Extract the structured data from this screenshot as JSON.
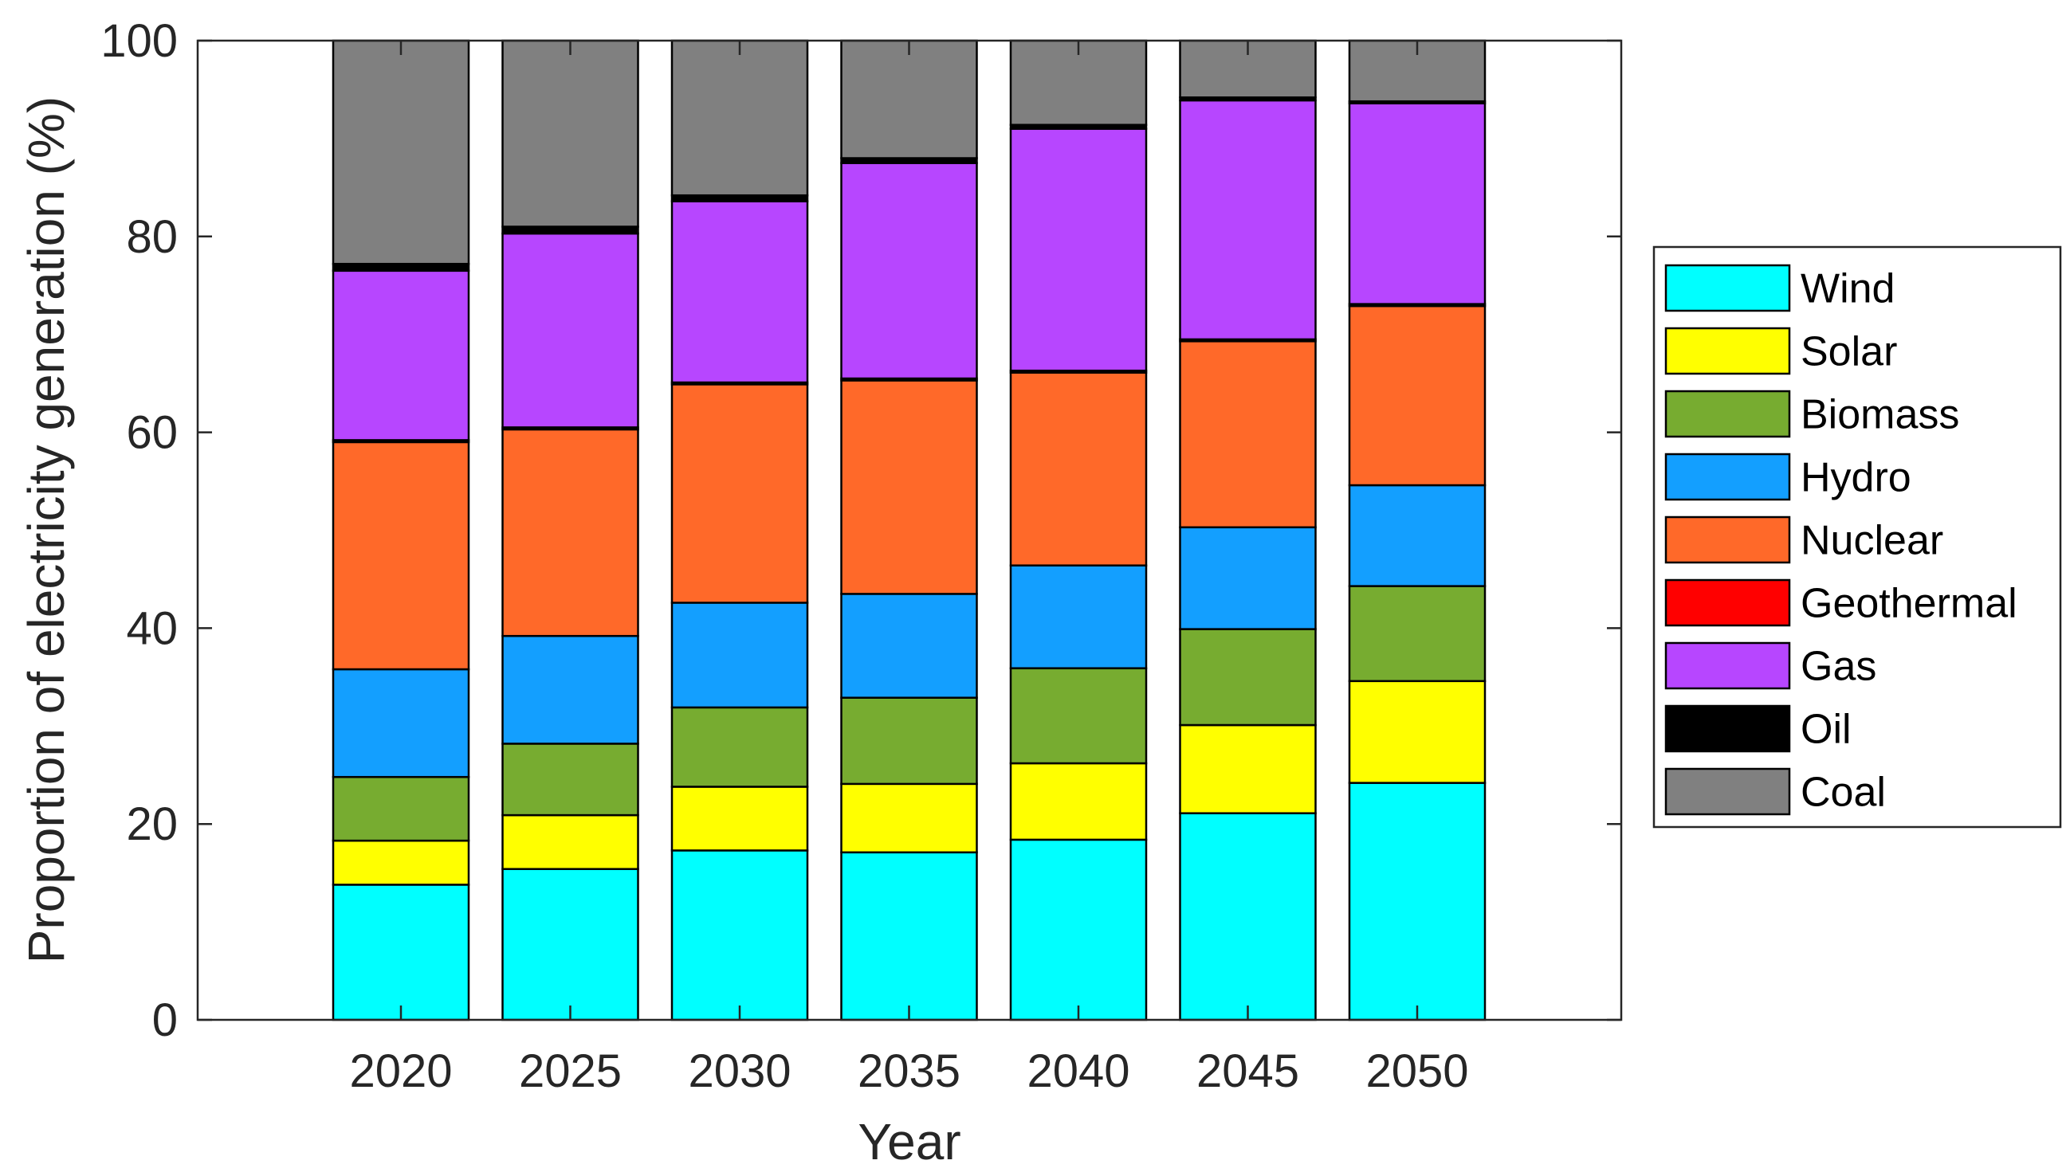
{
  "chart_data": {
    "type": "bar",
    "stacked": true,
    "title": "",
    "xlabel": "Year",
    "ylabel": "Proportion of electricity generation (%)",
    "ylim": [
      0,
      100
    ],
    "yticks": [
      0,
      20,
      40,
      60,
      80,
      100
    ],
    "grid": false,
    "legend_position": "right",
    "categories": [
      "2020",
      "2025",
      "2030",
      "2035",
      "2040",
      "2045",
      "2050"
    ],
    "series": [
      {
        "name": "Wind",
        "color": "#00FFFF",
        "values": [
          13.8,
          15.4,
          17.3,
          17.1,
          18.4,
          21.1,
          24.2
        ]
      },
      {
        "name": "Solar",
        "color": "#FFFF00",
        "values": [
          4.5,
          5.5,
          6.5,
          7.0,
          7.8,
          9.0,
          10.4
        ]
      },
      {
        "name": "Biomass",
        "color": "#77AC30",
        "values": [
          6.5,
          7.3,
          8.1,
          8.8,
          9.7,
          9.8,
          9.7
        ]
      },
      {
        "name": "Hydro",
        "color": "#139FFF",
        "values": [
          11.0,
          11.0,
          10.7,
          10.6,
          10.5,
          10.4,
          10.3
        ]
      },
      {
        "name": "Nuclear",
        "color": "#FF6929",
        "values": [
          23.2,
          21.1,
          22.3,
          21.8,
          19.7,
          19.0,
          18.3
        ]
      },
      {
        "name": "Geothermal",
        "color": "#FF0000",
        "values": [
          0.2,
          0.2,
          0.2,
          0.2,
          0.2,
          0.2,
          0.2
        ]
      },
      {
        "name": "Gas",
        "color": "#B746FF",
        "values": [
          17.3,
          19.8,
          18.5,
          22.0,
          24.7,
          24.4,
          20.5
        ]
      },
      {
        "name": "Oil",
        "color": "#000000",
        "values": [
          0.7,
          0.7,
          0.6,
          0.5,
          0.4,
          0.3,
          0.2
        ]
      },
      {
        "name": "Coal",
        "color": "#808080",
        "values": [
          22.8,
          19.0,
          15.8,
          12.0,
          8.6,
          5.8,
          6.2
        ]
      }
    ]
  }
}
